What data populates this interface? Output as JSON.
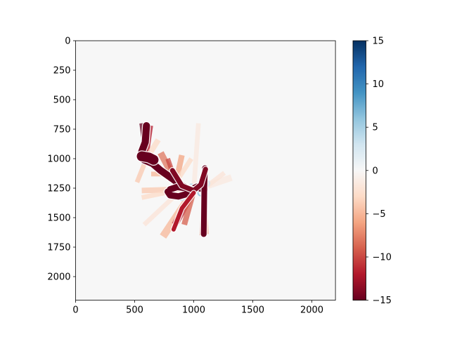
{
  "chart_data": {
    "type": "heatmap",
    "title": "",
    "xlabel": "",
    "ylabel": "",
    "xlim": [
      0,
      2200
    ],
    "ylim": [
      2200,
      0
    ],
    "x_ticks": [
      0,
      500,
      1000,
      1500,
      2000
    ],
    "y_ticks": [
      0,
      250,
      500,
      750,
      1000,
      1250,
      1500,
      1750,
      2000
    ],
    "background_value": 0,
    "colormap": "RdBu",
    "colorbar": {
      "range": [
        -15,
        15
      ],
      "ticks": [
        15,
        10,
        5,
        0,
        -5,
        -10,
        -15
      ],
      "tick_labels": [
        "15",
        "10",
        "5",
        "0",
        "−5",
        "−10",
        "−15"
      ],
      "colors": [
        "#67001f",
        "#b2182b",
        "#d6604d",
        "#f4a582",
        "#fddbc7",
        "#f7f7f7",
        "#d1e5f0",
        "#92c5de",
        "#4393c3",
        "#2166ac",
        "#053061"
      ]
    },
    "strokes": [
      {
        "name": "stroke-hook",
        "value": -15,
        "width": 10,
        "points": [
          [
            600,
            720
          ],
          [
            590,
            860
          ],
          [
            560,
            940
          ],
          [
            580,
            1010
          ],
          [
            650,
            1040
          ],
          [
            720,
            1100
          ],
          [
            820,
            1170
          ],
          [
            900,
            1230
          ],
          [
            980,
            1265
          ],
          [
            1030,
            1240
          ],
          [
            1090,
            1260
          ]
        ]
      },
      {
        "name": "stroke-loop",
        "value": -15,
        "width": 9,
        "points": [
          [
            780,
            1280
          ],
          [
            800,
            1310
          ],
          [
            870,
            1320
          ],
          [
            940,
            1300
          ],
          [
            1000,
            1270
          ],
          [
            940,
            1250
          ],
          [
            860,
            1240
          ],
          [
            800,
            1260
          ]
        ]
      },
      {
        "name": "stroke-vertical",
        "value": -15,
        "width": 8,
        "points": [
          [
            1095,
            1080
          ],
          [
            1090,
            1250
          ],
          [
            1085,
            1640
          ]
        ]
      },
      {
        "name": "stroke-diagonal",
        "value": -14,
        "width": 7,
        "points": [
          [
            820,
            1100
          ],
          [
            900,
            1230
          ],
          [
            1000,
            1270
          ],
          [
            1060,
            1220
          ],
          [
            1100,
            1090
          ]
        ]
      },
      {
        "name": "stroke-fan-low",
        "value": -12,
        "width": 6,
        "points": [
          [
            1000,
            1290
          ],
          [
            900,
            1420
          ],
          [
            830,
            1600
          ]
        ]
      },
      {
        "name": "stroke-blob-left",
        "value": -15,
        "width": 14,
        "points": [
          [
            560,
            980
          ],
          [
            620,
            990
          ],
          [
            660,
            1010
          ]
        ]
      }
    ],
    "rays": [
      {
        "from": [
          600,
          1000
        ],
        "to": [
          560,
          700
        ],
        "value": -15,
        "width": 10
      },
      {
        "from": [
          600,
          1000
        ],
        "to": [
          640,
          720
        ],
        "value": -12,
        "width": 8
      },
      {
        "from": [
          600,
          1000
        ],
        "to": [
          520,
          1200
        ],
        "value": -4,
        "width": 10
      },
      {
        "from": [
          600,
          1000
        ],
        "to": [
          700,
          840
        ],
        "value": -3,
        "width": 12
      },
      {
        "from": [
          850,
          1200
        ],
        "to": [
          720,
          950
        ],
        "value": -8,
        "width": 14
      },
      {
        "from": [
          850,
          1200
        ],
        "to": [
          780,
          1000
        ],
        "value": -10,
        "width": 10
      },
      {
        "from": [
          850,
          1200
        ],
        "to": [
          900,
          970
        ],
        "value": -6,
        "width": 12
      },
      {
        "from": [
          850,
          1200
        ],
        "to": [
          980,
          1000
        ],
        "value": -3,
        "width": 10
      },
      {
        "from": [
          900,
          1260
        ],
        "to": [
          560,
          1270
        ],
        "value": -4,
        "width": 12
      },
      {
        "from": [
          900,
          1260
        ],
        "to": [
          560,
          1330
        ],
        "value": -3,
        "width": 10
      },
      {
        "from": [
          900,
          1260
        ],
        "to": [
          580,
          1560
        ],
        "value": -2,
        "width": 10
      },
      {
        "from": [
          1000,
          1270
        ],
        "to": [
          740,
          1660
        ],
        "value": -5,
        "width": 16
      },
      {
        "from": [
          1000,
          1270
        ],
        "to": [
          840,
          1560
        ],
        "value": -11,
        "width": 14
      },
      {
        "from": [
          1000,
          1270
        ],
        "to": [
          920,
          1560
        ],
        "value": -9,
        "width": 12
      },
      {
        "from": [
          1000,
          1270
        ],
        "to": [
          1040,
          700
        ],
        "value": -1.5,
        "width": 10
      },
      {
        "from": [
          1000,
          1270
        ],
        "to": [
          1320,
          1160
        ],
        "value": -1.5,
        "width": 14
      },
      {
        "from": [
          1090,
          1250
        ],
        "to": [
          1260,
          1120
        ],
        "value": -2,
        "width": 10
      },
      {
        "from": [
          1090,
          1250
        ],
        "to": [
          1070,
          1650
        ],
        "value": -8,
        "width": 10
      },
      {
        "from": [
          1090,
          1250
        ],
        "to": [
          1110,
          1640
        ],
        "value": -6,
        "width": 8
      },
      {
        "from": [
          820,
          1130
        ],
        "to": [
          640,
          1130
        ],
        "value": -5,
        "width": 10
      }
    ],
    "positive_marks": [
      {
        "at": [
          560,
          960
        ],
        "value": 4
      },
      {
        "at": [
          580,
          1020
        ],
        "value": 5
      },
      {
        "at": [
          640,
          990
        ],
        "value": 3
      },
      {
        "at": [
          800,
          1280
        ],
        "value": 4
      },
      {
        "at": [
          830,
          1310
        ],
        "value": 3
      },
      {
        "at": [
          980,
          1240
        ],
        "value": 4
      },
      {
        "at": [
          1060,
          1290
        ],
        "value": 5
      },
      {
        "at": [
          1110,
          1210
        ],
        "value": 3
      },
      {
        "at": [
          900,
          1330
        ],
        "value": 3
      }
    ]
  }
}
